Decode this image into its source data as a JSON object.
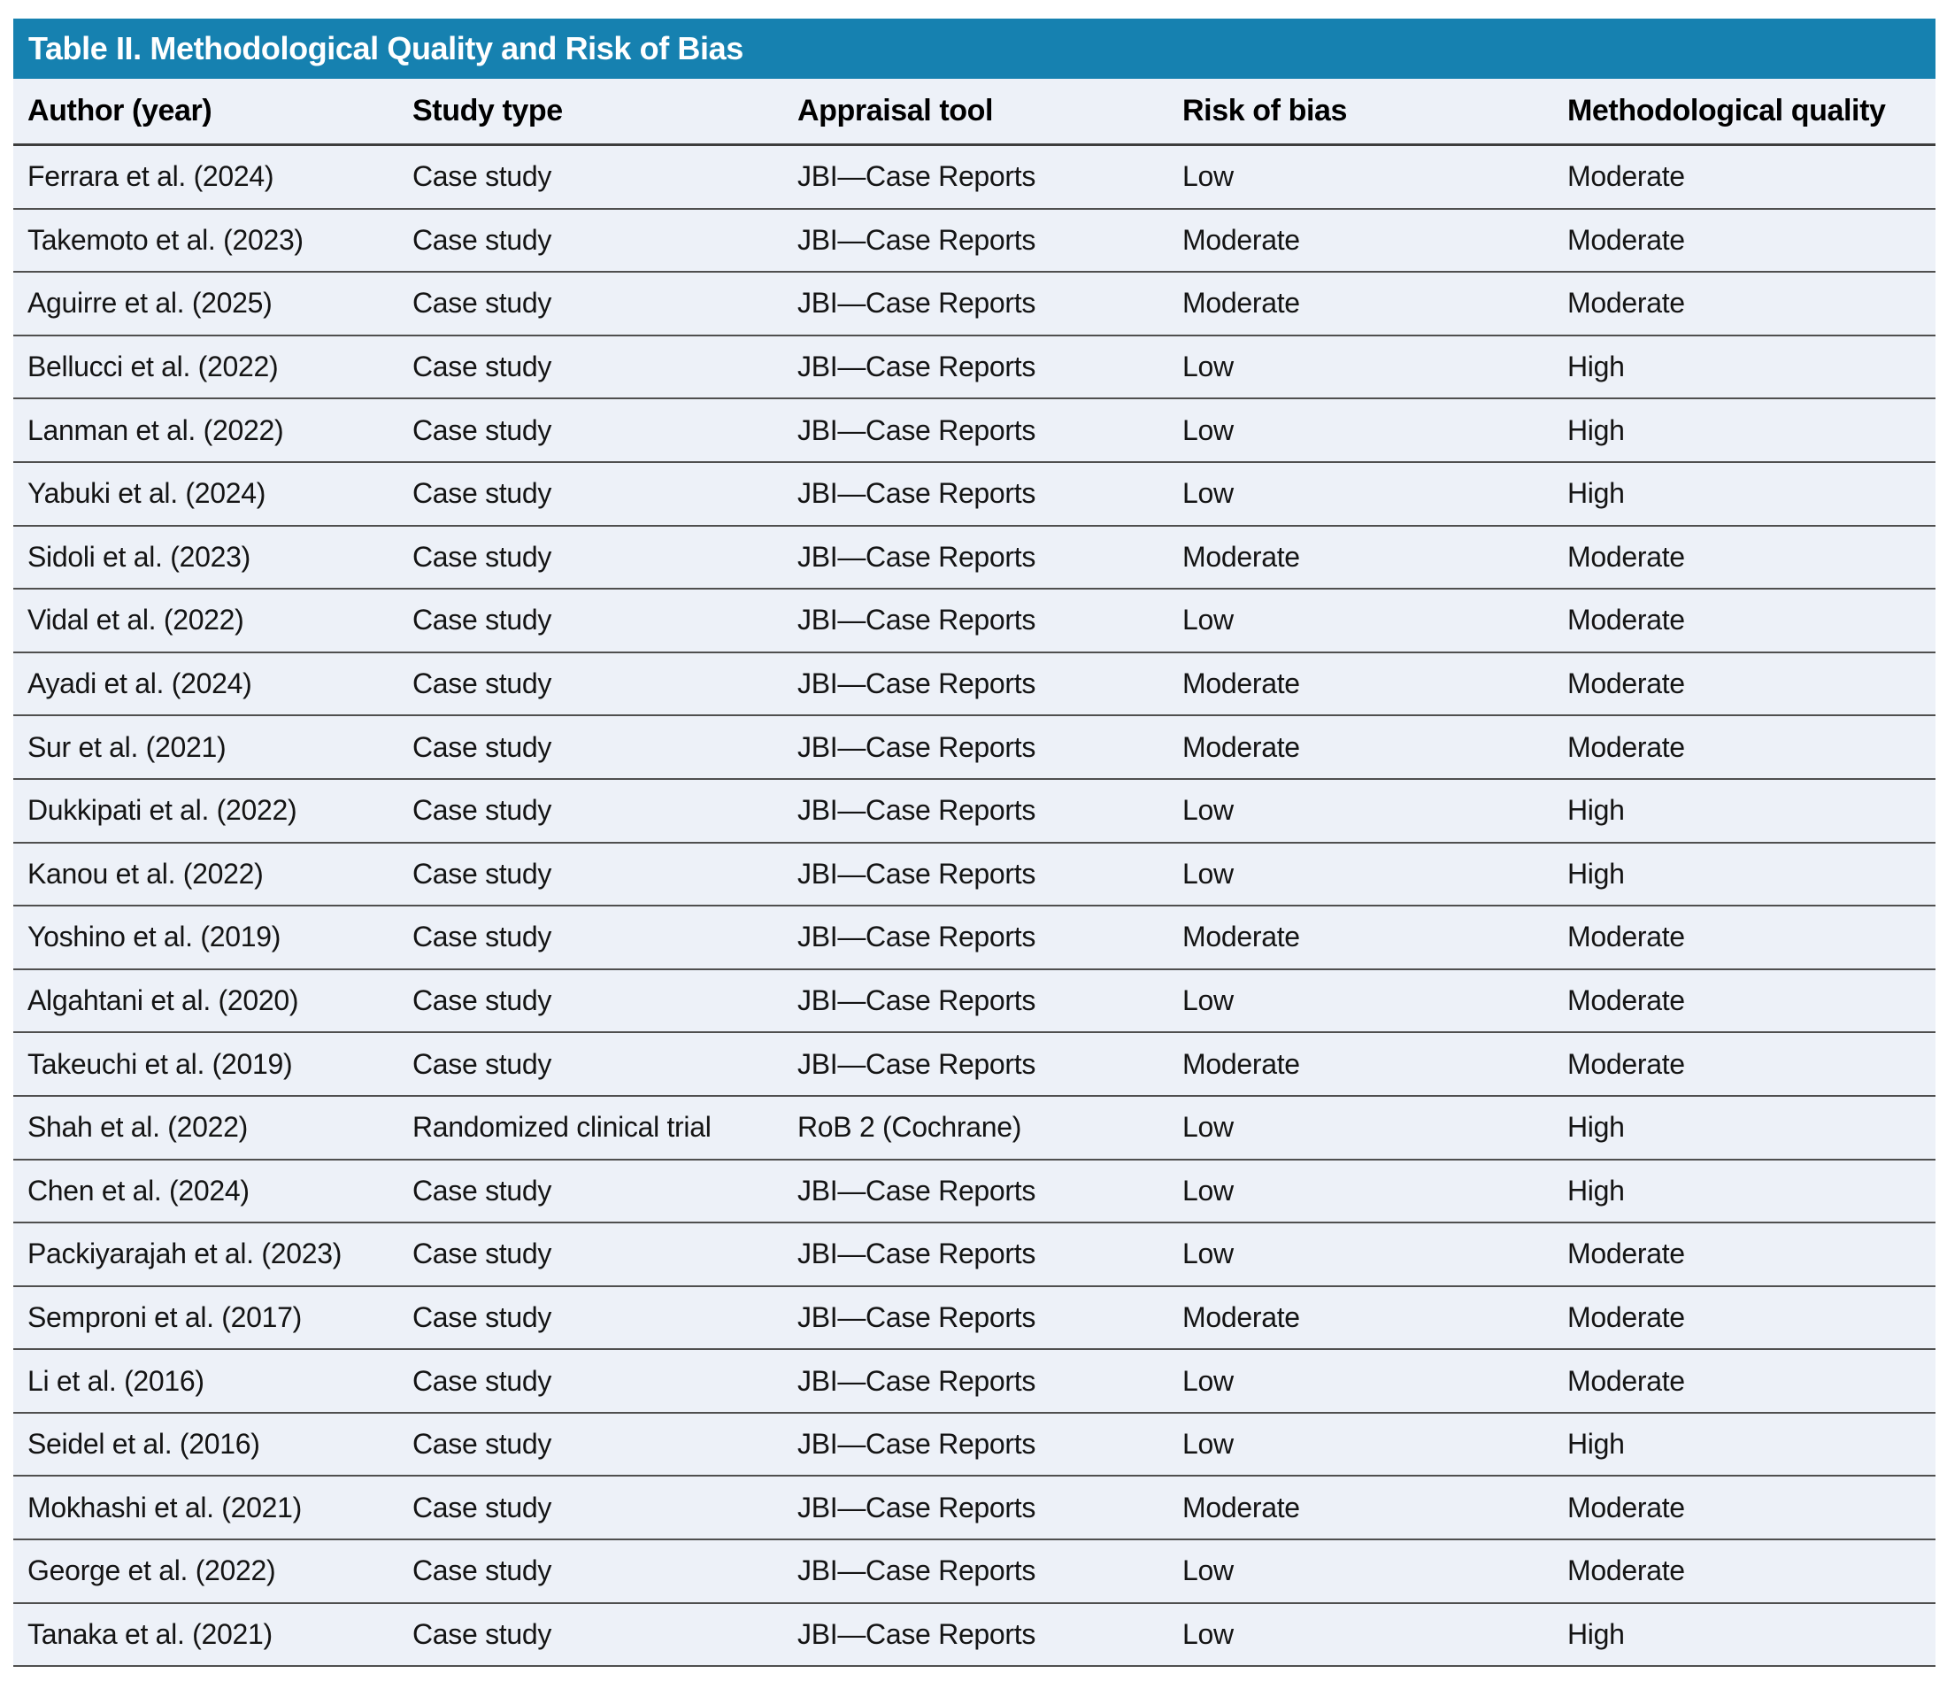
{
  "table": {
    "title": "Table II. Methodological Quality and Risk of Bias",
    "columns": [
      "Author (year)",
      "Study type",
      "Appraisal tool",
      "Risk of bias",
      "Methodological quality"
    ],
    "rows": [
      {
        "author": "Ferrara et al. (2024)",
        "study_type": "Case study",
        "appraisal_tool": "JBI—Case Reports",
        "risk_of_bias": "Low",
        "methodological_quality": "Moderate"
      },
      {
        "author": "Takemoto et al. (2023)",
        "study_type": "Case study",
        "appraisal_tool": "JBI—Case Reports",
        "risk_of_bias": "Moderate",
        "methodological_quality": "Moderate"
      },
      {
        "author": "Aguirre et al. (2025)",
        "study_type": "Case study",
        "appraisal_tool": "JBI—Case Reports",
        "risk_of_bias": "Moderate",
        "methodological_quality": "Moderate"
      },
      {
        "author": "Bellucci et al. (2022)",
        "study_type": "Case study",
        "appraisal_tool": "JBI—Case Reports",
        "risk_of_bias": "Low",
        "methodological_quality": "High"
      },
      {
        "author": "Lanman et al. (2022)",
        "study_type": "Case study",
        "appraisal_tool": "JBI—Case Reports",
        "risk_of_bias": "Low",
        "methodological_quality": "High"
      },
      {
        "author": "Yabuki et al. (2024)",
        "study_type": "Case study",
        "appraisal_tool": "JBI—Case Reports",
        "risk_of_bias": "Low",
        "methodological_quality": "High"
      },
      {
        "author": "Sidoli et al. (2023)",
        "study_type": "Case study",
        "appraisal_tool": "JBI—Case Reports",
        "risk_of_bias": "Moderate",
        "methodological_quality": "Moderate"
      },
      {
        "author": "Vidal et al. (2022)",
        "study_type": "Case study",
        "appraisal_tool": "JBI—Case Reports",
        "risk_of_bias": "Low",
        "methodological_quality": "Moderate"
      },
      {
        "author": "Ayadi et al. (2024)",
        "study_type": "Case study",
        "appraisal_tool": "JBI—Case Reports",
        "risk_of_bias": "Moderate",
        "methodological_quality": "Moderate"
      },
      {
        "author": "Sur et al. (2021)",
        "study_type": "Case study",
        "appraisal_tool": "JBI—Case Reports",
        "risk_of_bias": "Moderate",
        "methodological_quality": "Moderate"
      },
      {
        "author": "Dukkipati et al. (2022)",
        "study_type": "Case study",
        "appraisal_tool": "JBI—Case Reports",
        "risk_of_bias": "Low",
        "methodological_quality": "High"
      },
      {
        "author": "Kanou et al. (2022)",
        "study_type": "Case study",
        "appraisal_tool": "JBI—Case Reports",
        "risk_of_bias": "Low",
        "methodological_quality": "High"
      },
      {
        "author": "Yoshino et al. (2019)",
        "study_type": "Case study",
        "appraisal_tool": "JBI—Case Reports",
        "risk_of_bias": "Moderate",
        "methodological_quality": "Moderate"
      },
      {
        "author": "Algahtani et al. (2020)",
        "study_type": "Case study",
        "appraisal_tool": "JBI—Case Reports",
        "risk_of_bias": "Low",
        "methodological_quality": "Moderate"
      },
      {
        "author": "Takeuchi et al. (2019)",
        "study_type": "Case study",
        "appraisal_tool": "JBI—Case Reports",
        "risk_of_bias": "Moderate",
        "methodological_quality": "Moderate"
      },
      {
        "author": "Shah et al. (2022)",
        "study_type": "Randomized clinical trial",
        "appraisal_tool": "RoB 2 (Cochrane)",
        "risk_of_bias": "Low",
        "methodological_quality": "High"
      },
      {
        "author": "Chen et al. (2024)",
        "study_type": "Case study",
        "appraisal_tool": "JBI—Case Reports",
        "risk_of_bias": "Low",
        "methodological_quality": "High"
      },
      {
        "author": "Packiyarajah et al. (2023)",
        "study_type": "Case study",
        "appraisal_tool": "JBI—Case Reports",
        "risk_of_bias": "Low",
        "methodological_quality": "Moderate"
      },
      {
        "author": "Semproni et al. (2017)",
        "study_type": "Case study",
        "appraisal_tool": "JBI—Case Reports",
        "risk_of_bias": "Moderate",
        "methodological_quality": "Moderate"
      },
      {
        "author": "Li et al. (2016)",
        "study_type": "Case study",
        "appraisal_tool": "JBI—Case Reports",
        "risk_of_bias": "Low",
        "methodological_quality": "Moderate"
      },
      {
        "author": "Seidel et al. (2016)",
        "study_type": "Case study",
        "appraisal_tool": "JBI—Case Reports",
        "risk_of_bias": "Low",
        "methodological_quality": "High"
      },
      {
        "author": "Mokhashi et al. (2021)",
        "study_type": "Case study",
        "appraisal_tool": "JBI—Case Reports",
        "risk_of_bias": "Moderate",
        "methodological_quality": "Moderate"
      },
      {
        "author": "George et al. (2022)",
        "study_type": "Case study",
        "appraisal_tool": "JBI—Case Reports",
        "risk_of_bias": "Low",
        "methodological_quality": "Moderate"
      },
      {
        "author": "Tanaka et al. (2021)",
        "study_type": "Case study",
        "appraisal_tool": "JBI—Case Reports",
        "risk_of_bias": "Low",
        "methodological_quality": "High"
      }
    ],
    "colors": {
      "title_bar": "#1681b0",
      "title_text": "#ffffff",
      "row_background": "#edf1f8",
      "divider": "#4f4f4f",
      "header_underline": "#3d3d3d",
      "body_text": "#141414"
    }
  }
}
